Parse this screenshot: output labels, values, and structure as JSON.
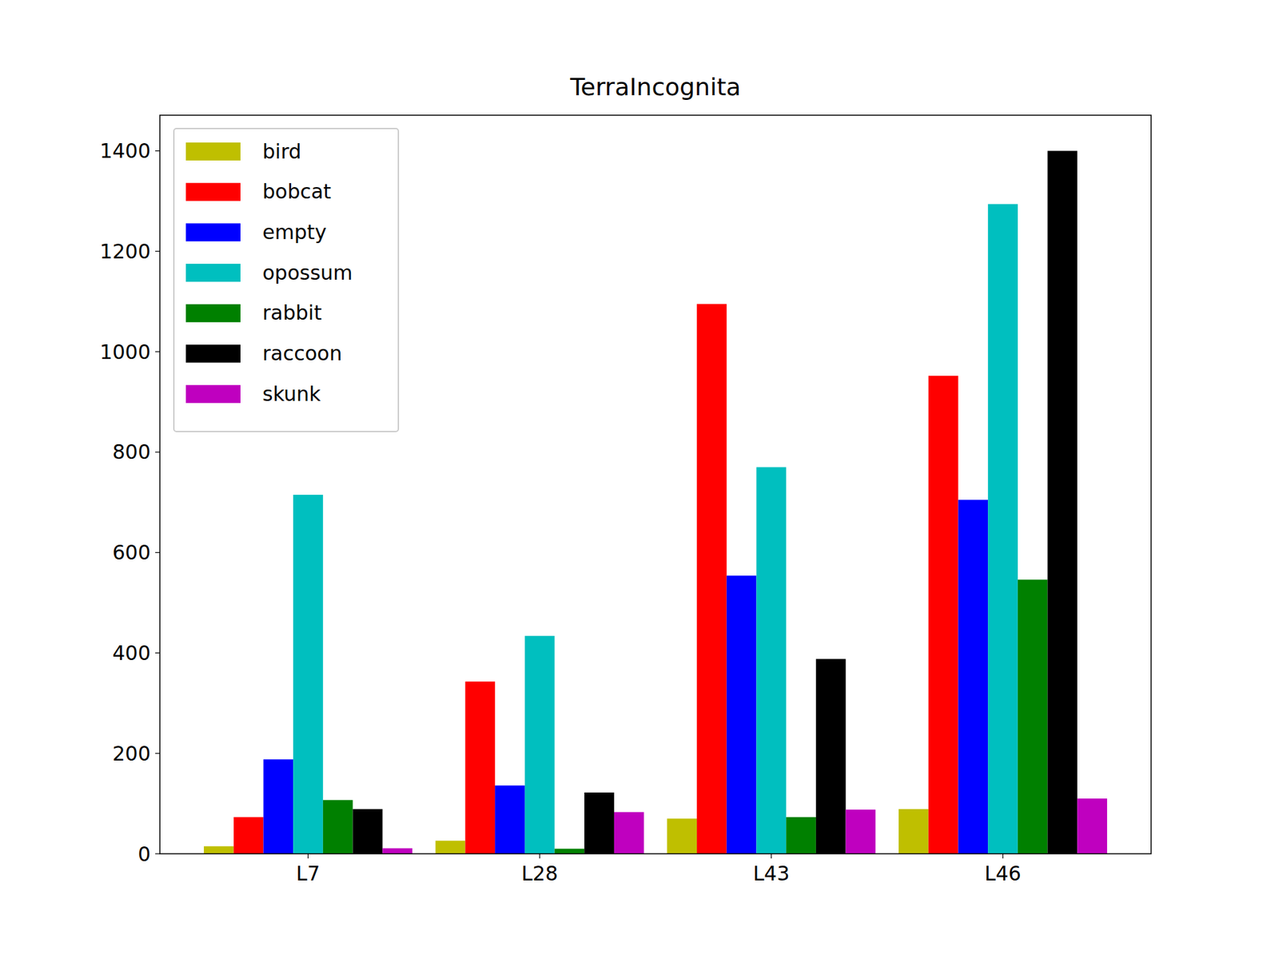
{
  "chart_data": {
    "type": "bar",
    "title": "TerraIncognita",
    "categories": [
      "L7",
      "L28",
      "L43",
      "L46"
    ],
    "series": [
      {
        "name": "bird",
        "color": "#bfbf00",
        "values": [
          15,
          26,
          70,
          89
        ]
      },
      {
        "name": "bobcat",
        "color": "#ff0000",
        "values": [
          73,
          343,
          1095,
          952
        ]
      },
      {
        "name": "empty",
        "color": "#0000ff",
        "values": [
          188,
          136,
          554,
          705
        ]
      },
      {
        "name": "opossum",
        "color": "#00bfbf",
        "values": [
          715,
          434,
          770,
          1294
        ]
      },
      {
        "name": "rabbit",
        "color": "#008000",
        "values": [
          107,
          10,
          73,
          546
        ]
      },
      {
        "name": "raccoon",
        "color": "#000000",
        "values": [
          89,
          122,
          388,
          1400
        ]
      },
      {
        "name": "skunk",
        "color": "#bf00bf",
        "values": [
          11,
          83,
          88,
          110
        ]
      }
    ],
    "ylim": [
      0,
      1471
    ],
    "yticks": [
      0,
      200,
      400,
      600,
      800,
      1000,
      1200,
      1400
    ],
    "grid": false,
    "legend": "upper left"
  }
}
